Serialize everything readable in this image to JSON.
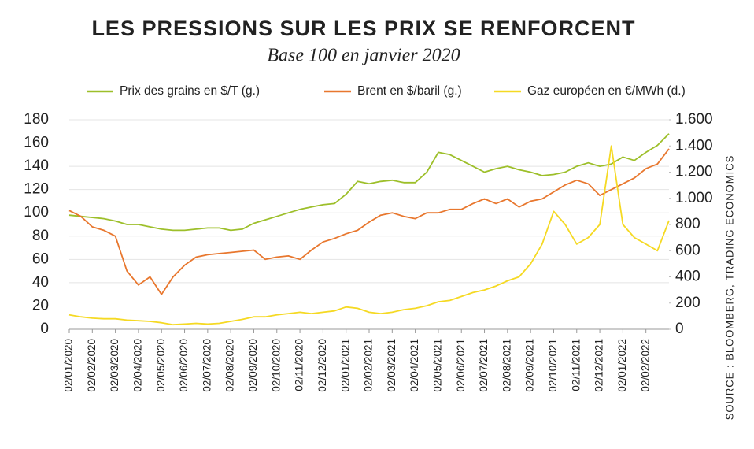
{
  "chart_data": {
    "type": "line",
    "title": "LES PRESSIONS SUR LES PRIX SE RENFORCENT",
    "subtitle": "Base 100 en janvier 2020",
    "source": "SOURCE : BLOOMBERG, TRADING ECONOMICS",
    "categories": [
      "02/01/2020",
      null,
      "02/02/2020",
      null,
      "02/03/2020",
      null,
      "02/04/2020",
      null,
      "02/05/2020",
      null,
      "02/06/2020",
      null,
      "02/07/2020",
      null,
      "02/08/2020",
      null,
      "02/09/2020",
      null,
      "02/10/2020",
      null,
      "02/11/2020",
      null,
      "02/12/2020",
      null,
      "02/01/2021",
      null,
      "02/02/2021",
      null,
      "02/03/2021",
      null,
      "02/04/2021",
      null,
      "02/05/2021",
      null,
      "02/06/2021",
      null,
      "02/07/2021",
      null,
      "02/08/2021",
      null,
      "02/09/2021",
      null,
      "02/10/2021",
      null,
      "02/11/2021",
      null,
      "02/12/2021",
      null,
      "02/01/2022",
      null,
      "02/02/2022",
      null,
      null
    ],
    "series": [
      {
        "name": "Prix des grains en $/T (g.)",
        "color": "#9dbf2a",
        "values": [
          98,
          97,
          96,
          95,
          93,
          90,
          90,
          88,
          86,
          85,
          85,
          86,
          87,
          87,
          85,
          86,
          91,
          94,
          97,
          100,
          103,
          105,
          107,
          108,
          116,
          127,
          125,
          127,
          128,
          126,
          126,
          135,
          152,
          150,
          145,
          140,
          135,
          138,
          140,
          137,
          135,
          132,
          133,
          135,
          140,
          143,
          140,
          142,
          148,
          145,
          152,
          158,
          168
        ]
      },
      {
        "name": "Brent en $/baril (g.)",
        "color": "#e8772e",
        "values": [
          102,
          97,
          88,
          85,
          80,
          50,
          38,
          45,
          30,
          45,
          55,
          62,
          64,
          65,
          66,
          67,
          68,
          60,
          62,
          63,
          60,
          68,
          75,
          78,
          82,
          85,
          92,
          98,
          100,
          97,
          95,
          100,
          100,
          103,
          103,
          108,
          112,
          108,
          112,
          105,
          110,
          112,
          118,
          124,
          128,
          125,
          115,
          120,
          125,
          130,
          138,
          142,
          155
        ]
      },
      {
        "name": "Gaz européen en €/MWh (d.)",
        "color": "#f5d923",
        "axis": "y2",
        "values": [
          110,
          95,
          85,
          80,
          80,
          70,
          65,
          60,
          50,
          35,
          40,
          45,
          40,
          45,
          60,
          75,
          95,
          95,
          110,
          120,
          130,
          120,
          130,
          140,
          170,
          160,
          130,
          120,
          130,
          150,
          160,
          180,
          210,
          220,
          250,
          280,
          300,
          330,
          370,
          400,
          500,
          650,
          900,
          800,
          650,
          700,
          800,
          1400,
          800,
          700,
          650,
          600,
          830
        ]
      }
    ],
    "ylim": [
      0,
      180
    ],
    "yticks": [
      0,
      20,
      40,
      60,
      80,
      100,
      120,
      140,
      160,
      180
    ],
    "y2lim": [
      0,
      1600
    ],
    "y2ticks": [
      0,
      200,
      400,
      600,
      800,
      {
        "value": 1000,
        "label": "1.000"
      },
      {
        "value": 1200,
        "label": "1.200"
      },
      {
        "value": 1400,
        "label": "1.400"
      },
      {
        "value": 1600,
        "label": "1.600"
      }
    ],
    "grid": true
  }
}
